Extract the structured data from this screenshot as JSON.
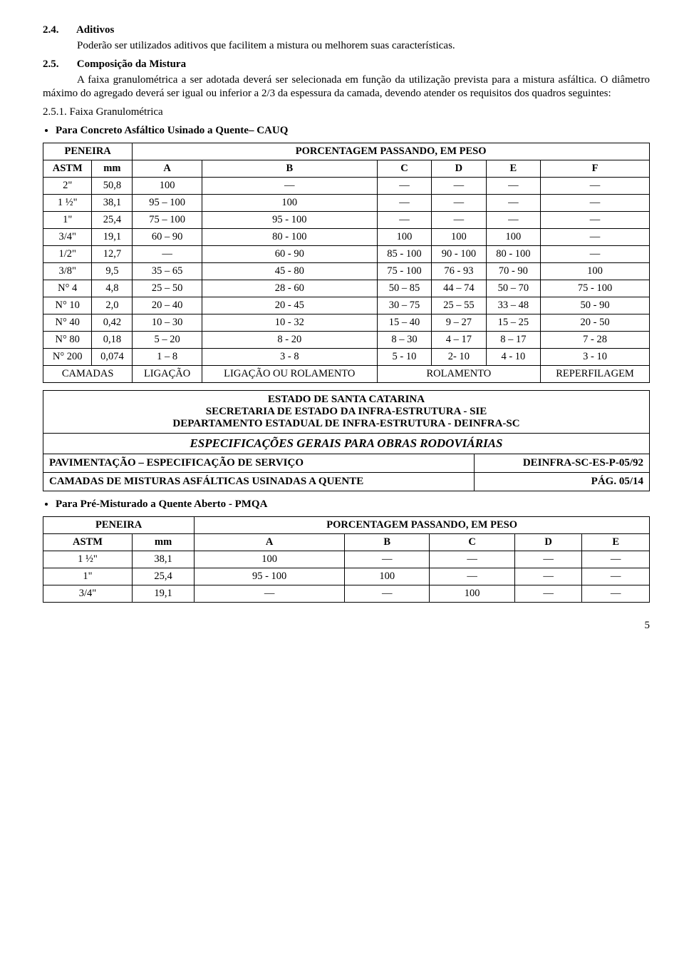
{
  "s24": {
    "heading_num": "2.4.",
    "heading_title": "Aditivos",
    "para": "Poderão ser utilizados aditivos que facilitem a mistura ou melhorem suas características."
  },
  "s25": {
    "heading_num": "2.5.",
    "heading_title": "Composição da Mistura",
    "para": "A faixa granulométrica a ser adotada deverá ser selecionada em função da utilização prevista para a mistura asfáltica. O diâmetro máximo do agregado deverá ser igual ou inferior a 2/3 da espessura da camada, devendo atender os requisitos dos quadros seguintes:"
  },
  "s251": {
    "heading_num": "2.5.1.",
    "heading_title": "Faixa Granulométrica",
    "bullet1": "Para Concreto Asfáltico Usinado a Quente– CAUQ"
  },
  "cauq": {
    "peneira_label": "PENEIRA",
    "porc_label": "PORCENTAGEM PASSANDO, EM PESO",
    "cols": {
      "c0": "ASTM",
      "c1": "mm",
      "c2": "A",
      "c3": "B",
      "c4": "C",
      "c5": "D",
      "c6": "E",
      "c7": "F"
    },
    "rows": [
      {
        "c0": "2\"",
        "c1": "50,8",
        "c2": "100",
        "c3": "—",
        "c4": "—",
        "c5": "—",
        "c6": "—",
        "c7": "—"
      },
      {
        "c0": "1 ½\"",
        "c1": "38,1",
        "c2": "95 – 100",
        "c3": "100",
        "c4": "—",
        "c5": "—",
        "c6": "—",
        "c7": "—"
      },
      {
        "c0": "1\"",
        "c1": "25,4",
        "c2": "75 – 100",
        "c3": "95 - 100",
        "c4": "—",
        "c5": "—",
        "c6": "—",
        "c7": "—"
      },
      {
        "c0": "3/4\"",
        "c1": "19,1",
        "c2": "60 – 90",
        "c3": "80 - 100",
        "c4": "100",
        "c5": "100",
        "c6": "100",
        "c7": "—"
      },
      {
        "c0": "1/2\"",
        "c1": "12,7",
        "c2": "—",
        "c3": "60 - 90",
        "c4": "85 - 100",
        "c5": "90 - 100",
        "c6": "80 - 100",
        "c7": "—"
      },
      {
        "c0": "3/8\"",
        "c1": "9,5",
        "c2": "35 – 65",
        "c3": "45 - 80",
        "c4": "75 - 100",
        "c5": "76 - 93",
        "c6": "70 - 90",
        "c7": "100"
      },
      {
        "c0": "N° 4",
        "c1": "4,8",
        "c2": "25 – 50",
        "c3": "28 - 60",
        "c4": "50 – 85",
        "c5": "44 – 74",
        "c6": "50 – 70",
        "c7": "75 - 100"
      },
      {
        "c0": "N° 10",
        "c1": "2,0",
        "c2": "20 – 40",
        "c3": "20 - 45",
        "c4": "30 – 75",
        "c5": "25 – 55",
        "c6": "33 – 48",
        "c7": "50 - 90"
      },
      {
        "c0": "N° 40",
        "c1": "0,42",
        "c2": "10 – 30",
        "c3": "10 - 32",
        "c4": "15 – 40",
        "c5": "9 – 27",
        "c6": "15 – 25",
        "c7": "20 - 50"
      },
      {
        "c0": "N° 80",
        "c1": "0,18",
        "c2": "5 – 20",
        "c3": "8 - 20",
        "c4": "8 – 30",
        "c5": "4 – 17",
        "c6": "8 – 17",
        "c7": "7 - 28"
      },
      {
        "c0": "N° 200",
        "c1": "0,074",
        "c2": "1 – 8",
        "c3": "3 - 8",
        "c4": "5 - 10",
        "c5": "2- 10",
        "c6": "4 - 10",
        "c7": "3 - 10"
      }
    ],
    "footer": {
      "camadas": "CAMADAS",
      "ligacao": "LIGAÇÃO",
      "ligacao_ou_rol": "LIGAÇÃO OU ROLAMENTO",
      "rolamento": "ROLAMENTO",
      "reperfilagem": "REPERFILAGEM"
    }
  },
  "hdr": {
    "line1": "ESTADO DE SANTA CATARINA",
    "line2": "SECRETARIA DE ESTADO DA INFRA-ESTRUTURA - SIE",
    "line3": "DEPARTAMENTO ESTADUAL DE INFRA-ESTRUTURA - DEINFRA-SC",
    "line4": "ESPECIFICAÇÕES GERAIS PARA OBRAS RODOVIÁRIAS",
    "row3_left": "PAVIMENTAÇÃO – ESPECIFICAÇÃO DE SERVIÇO",
    "row3_right": "DEINFRA-SC-ES-P-05/92",
    "row4_left": "CAMADAS DE MISTURAS ASFÁLTICAS USINADAS A QUENTE",
    "row4_right": "PÁG. 05/14"
  },
  "pmqa": {
    "bullet": "Para Pré-Misturado a Quente Aberto - PMQA",
    "peneira_label": "PENEIRA",
    "porc_label": "PORCENTAGEM PASSANDO, EM PESO",
    "cols": {
      "c0": "ASTM",
      "c1": "mm",
      "c2": "A",
      "c3": "B",
      "c4": "C",
      "c5": "D",
      "c6": "E"
    },
    "rows": [
      {
        "c0": "1 ½\"",
        "c1": "38,1",
        "c2": "100",
        "c3": "—",
        "c4": "—",
        "c5": "—",
        "c6": "—"
      },
      {
        "c0": "1\"",
        "c1": "25,4",
        "c2": "95 - 100",
        "c3": "100",
        "c4": "—",
        "c5": "—",
        "c6": "—"
      },
      {
        "c0": "3/4\"",
        "c1": "19,1",
        "c2": "—",
        "c3": "—",
        "c4": "100",
        "c5": "—",
        "c6": "—"
      }
    ]
  },
  "page_number": "5"
}
